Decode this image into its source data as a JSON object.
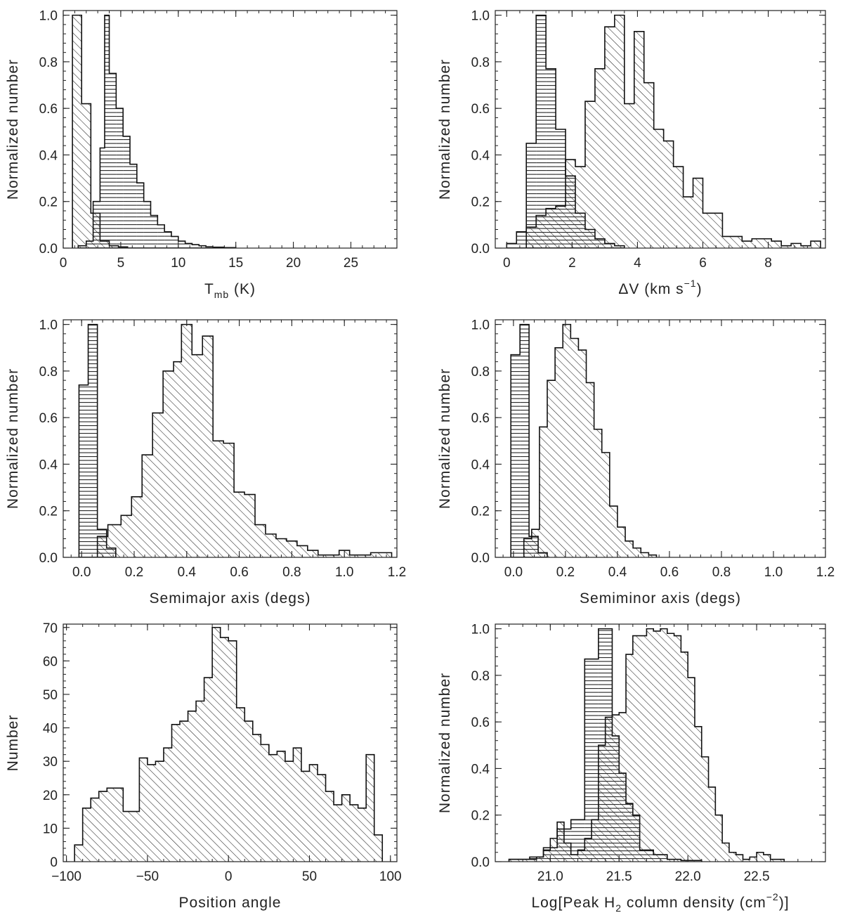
{
  "chart_data": [
    {
      "type": "histogram",
      "xlabel": "T",
      "xlabel_sub": "mb",
      "xlabel_tail": " (K)",
      "ylabel": "Normalized number",
      "xlim": [
        0,
        29
      ],
      "ylim": [
        0,
        1.02
      ],
      "xticks": [
        0,
        5,
        10,
        15,
        20,
        25
      ],
      "yticks": [
        0.0,
        0.2,
        0.4,
        0.6,
        0.8,
        1.0
      ],
      "ytick_decimals": 1,
      "series": [
        {
          "pattern": "diagonal",
          "bin_edges": [
            0.8,
            1.6,
            2.4,
            3.2,
            4.0,
            4.8,
            5.6
          ],
          "values": [
            1.0,
            0.62,
            0.15,
            0.03,
            0.01,
            0.005
          ]
        },
        {
          "pattern": "horizontal",
          "bin_edges": [
            1.3,
            2.0,
            2.6,
            3.2,
            3.6,
            4.0,
            4.6,
            5.2,
            5.8,
            6.4,
            7.0,
            7.6,
            8.2,
            8.8,
            9.4,
            10.0,
            10.6,
            11.2,
            11.8,
            12.4,
            13.0,
            14.0,
            15.0
          ],
          "values": [
            0.01,
            0.03,
            0.2,
            0.43,
            1.0,
            0.75,
            0.6,
            0.48,
            0.36,
            0.28,
            0.2,
            0.14,
            0.1,
            0.07,
            0.05,
            0.03,
            0.02,
            0.015,
            0.01,
            0.006,
            0.004,
            0.002
          ]
        }
      ]
    },
    {
      "type": "histogram",
      "xlabel": "ΔV (km s",
      "xlabel_sup": "−1",
      "xlabel_tail": ")",
      "ylabel": "Normalized number",
      "xlim": [
        -0.35,
        9.75
      ],
      "ylim": [
        0,
        1.02
      ],
      "xticks": [
        0,
        2,
        4,
        6,
        8
      ],
      "yticks": [
        0.0,
        0.2,
        0.4,
        0.6,
        0.8,
        1.0
      ],
      "ytick_decimals": 1,
      "series": [
        {
          "pattern": "horizontal",
          "bin_edges": [
            0.0,
            0.3,
            0.6,
            0.9,
            1.2,
            1.5,
            1.8,
            2.1,
            2.4,
            2.7,
            3.0,
            3.3,
            3.6
          ],
          "values": [
            0.02,
            0.07,
            0.45,
            1.0,
            0.77,
            0.51,
            0.31,
            0.15,
            0.08,
            0.04,
            0.02,
            0.01
          ]
        },
        {
          "pattern": "diagonal",
          "bin_edges": [
            0.6,
            0.9,
            1.2,
            1.5,
            1.8,
            2.1,
            2.4,
            2.7,
            3.0,
            3.3,
            3.6,
            3.9,
            4.2,
            4.5,
            4.8,
            5.1,
            5.4,
            5.7,
            6.0,
            6.3,
            6.6,
            6.9,
            7.2,
            7.5,
            7.8,
            8.1,
            8.4,
            8.7,
            9.0,
            9.3,
            9.6
          ],
          "values": [
            0.09,
            0.14,
            0.17,
            0.18,
            0.38,
            0.35,
            0.63,
            0.77,
            0.95,
            1.0,
            0.62,
            0.93,
            0.71,
            0.51,
            0.46,
            0.35,
            0.22,
            0.3,
            0.15,
            0.15,
            0.05,
            0.05,
            0.03,
            0.04,
            0.04,
            0.03,
            0.01,
            0.02,
            0.01,
            0.03
          ]
        }
      ]
    },
    {
      "type": "histogram",
      "xlabel": "Semimajor axis (degs)",
      "ylabel": "Normalized number",
      "xlim": [
        -0.07,
        1.2
      ],
      "ylim": [
        0,
        1.02
      ],
      "xticks": [
        0.0,
        0.2,
        0.4,
        0.6,
        0.8,
        1.0,
        1.2
      ],
      "yticks": [
        0.0,
        0.2,
        0.4,
        0.6,
        0.8,
        1.0
      ],
      "ytick_decimals": 1,
      "series": [
        {
          "pattern": "horizontal",
          "bin_edges": [
            -0.01,
            0.025,
            0.06,
            0.095,
            0.13
          ],
          "values": [
            0.74,
            1.0,
            0.12,
            0.04
          ]
        },
        {
          "pattern": "diagonal",
          "bin_edges": [
            0.06,
            0.1,
            0.15,
            0.19,
            0.23,
            0.27,
            0.31,
            0.35,
            0.38,
            0.42,
            0.46,
            0.5,
            0.54,
            0.58,
            0.62,
            0.66,
            0.7,
            0.74,
            0.78,
            0.82,
            0.86,
            0.9,
            0.94,
            0.98,
            1.02,
            1.06,
            1.1,
            1.14,
            1.18
          ],
          "values": [
            0.09,
            0.14,
            0.18,
            0.26,
            0.44,
            0.62,
            0.8,
            0.84,
            1.0,
            0.87,
            0.95,
            0.5,
            0.49,
            0.28,
            0.27,
            0.14,
            0.1,
            0.08,
            0.07,
            0.05,
            0.03,
            0.01,
            0.01,
            0.03,
            0.01,
            0.01,
            0.02,
            0.02
          ]
        }
      ]
    },
    {
      "type": "histogram",
      "xlabel": "Semiminor axis (degs)",
      "ylabel": "Normalized number",
      "xlim": [
        -0.07,
        1.2
      ],
      "ylim": [
        0,
        1.02
      ],
      "xticks": [
        0.0,
        0.2,
        0.4,
        0.6,
        0.8,
        1.0,
        1.2
      ],
      "yticks": [
        0.0,
        0.2,
        0.4,
        0.6,
        0.8,
        1.0
      ],
      "ytick_decimals": 1,
      "series": [
        {
          "pattern": "horizontal",
          "bin_edges": [
            -0.01,
            0.025,
            0.06,
            0.095,
            0.13
          ],
          "values": [
            0.87,
            1.0,
            0.09,
            0.02
          ]
        },
        {
          "pattern": "diagonal",
          "bin_edges": [
            0.04,
            0.07,
            0.1,
            0.13,
            0.16,
            0.19,
            0.22,
            0.25,
            0.28,
            0.31,
            0.34,
            0.37,
            0.4,
            0.43,
            0.46,
            0.49,
            0.52,
            0.55
          ],
          "values": [
            0.08,
            0.12,
            0.56,
            0.76,
            0.9,
            1.0,
            0.94,
            0.89,
            0.75,
            0.55,
            0.45,
            0.22,
            0.13,
            0.07,
            0.04,
            0.02,
            0.01
          ]
        }
      ]
    },
    {
      "type": "histogram",
      "xlabel": "Position angle",
      "ylabel": "Number",
      "xlim": [
        -102,
        104
      ],
      "ylim": [
        0,
        71
      ],
      "xticks": [
        -100,
        -50,
        0,
        50,
        100
      ],
      "yticks": [
        0,
        10,
        20,
        30,
        40,
        50,
        60,
        70
      ],
      "ytick_decimals": 0,
      "series": [
        {
          "pattern": "diagonal",
          "bin_edges": [
            -95,
            -90,
            -85,
            -80,
            -75,
            -70,
            -65,
            -60,
            -55,
            -50,
            -45,
            -40,
            -35,
            -30,
            -25,
            -20,
            -15,
            -10,
            -5,
            0,
            5,
            10,
            15,
            20,
            25,
            30,
            35,
            40,
            45,
            50,
            55,
            60,
            65,
            70,
            75,
            80,
            85,
            90,
            95
          ],
          "values": [
            5,
            16,
            19,
            21,
            22,
            22,
            15,
            15,
            31,
            29,
            30,
            34,
            41,
            42,
            45,
            48,
            55,
            70,
            67,
            66,
            46,
            42,
            38,
            35,
            32,
            33,
            30,
            34,
            27,
            29,
            26,
            21,
            17,
            20,
            17,
            16,
            32,
            8
          ]
        }
      ]
    },
    {
      "type": "histogram",
      "xlabel": "Log[Peak H",
      "xlabel_sub": "2",
      "xlabel_tail": " column density (cm",
      "xlabel_sup": "−2",
      "xlabel_end": ")]",
      "ylabel": "Normalized number",
      "xlim": [
        20.6,
        23.0
      ],
      "ylim": [
        0,
        1.02
      ],
      "xticks": [
        21.0,
        21.5,
        22.0,
        22.5
      ],
      "yticks": [
        0.0,
        0.2,
        0.4,
        0.6,
        0.8,
        1.0
      ],
      "ytick_decimals": 1,
      "series": [
        {
          "pattern": "horizontal",
          "bin_edges": [
            20.7,
            20.85,
            20.95,
            21.05,
            21.15,
            21.25,
            21.35,
            21.45,
            21.5,
            21.55,
            21.6,
            21.65,
            21.75,
            21.85,
            21.95,
            22.1
          ],
          "values": [
            0.01,
            0.02,
            0.06,
            0.14,
            0.18,
            0.87,
            1.0,
            0.54,
            0.38,
            0.25,
            0.2,
            0.05,
            0.03,
            0.01,
            0.005
          ]
        },
        {
          "pattern": "diagonal",
          "bin_edges": [
            20.7,
            20.8,
            20.9,
            20.95,
            21.0,
            21.05,
            21.1,
            21.15,
            21.2,
            21.25,
            21.3,
            21.35,
            21.4,
            21.45,
            21.5,
            21.55,
            21.6,
            21.65,
            21.7,
            21.75,
            21.8,
            21.85,
            21.9,
            21.95,
            22.0,
            22.05,
            22.1,
            22.15,
            22.2,
            22.25,
            22.3,
            22.35,
            22.4,
            22.45,
            22.5,
            22.55,
            22.6,
            22.65,
            22.7
          ],
          "values": [
            0.01,
            0.01,
            0.02,
            0.05,
            0.1,
            0.17,
            0.08,
            0.03,
            0.05,
            0.1,
            0.18,
            0.5,
            0.62,
            0.63,
            0.64,
            0.89,
            0.97,
            0.97,
            1.0,
            0.99,
            1.0,
            0.98,
            0.97,
            0.9,
            0.79,
            0.58,
            0.45,
            0.32,
            0.2,
            0.08,
            0.04,
            0.03,
            0.01,
            0.02,
            0.04,
            0.03,
            0.01,
            0.01
          ]
        }
      ]
    }
  ]
}
